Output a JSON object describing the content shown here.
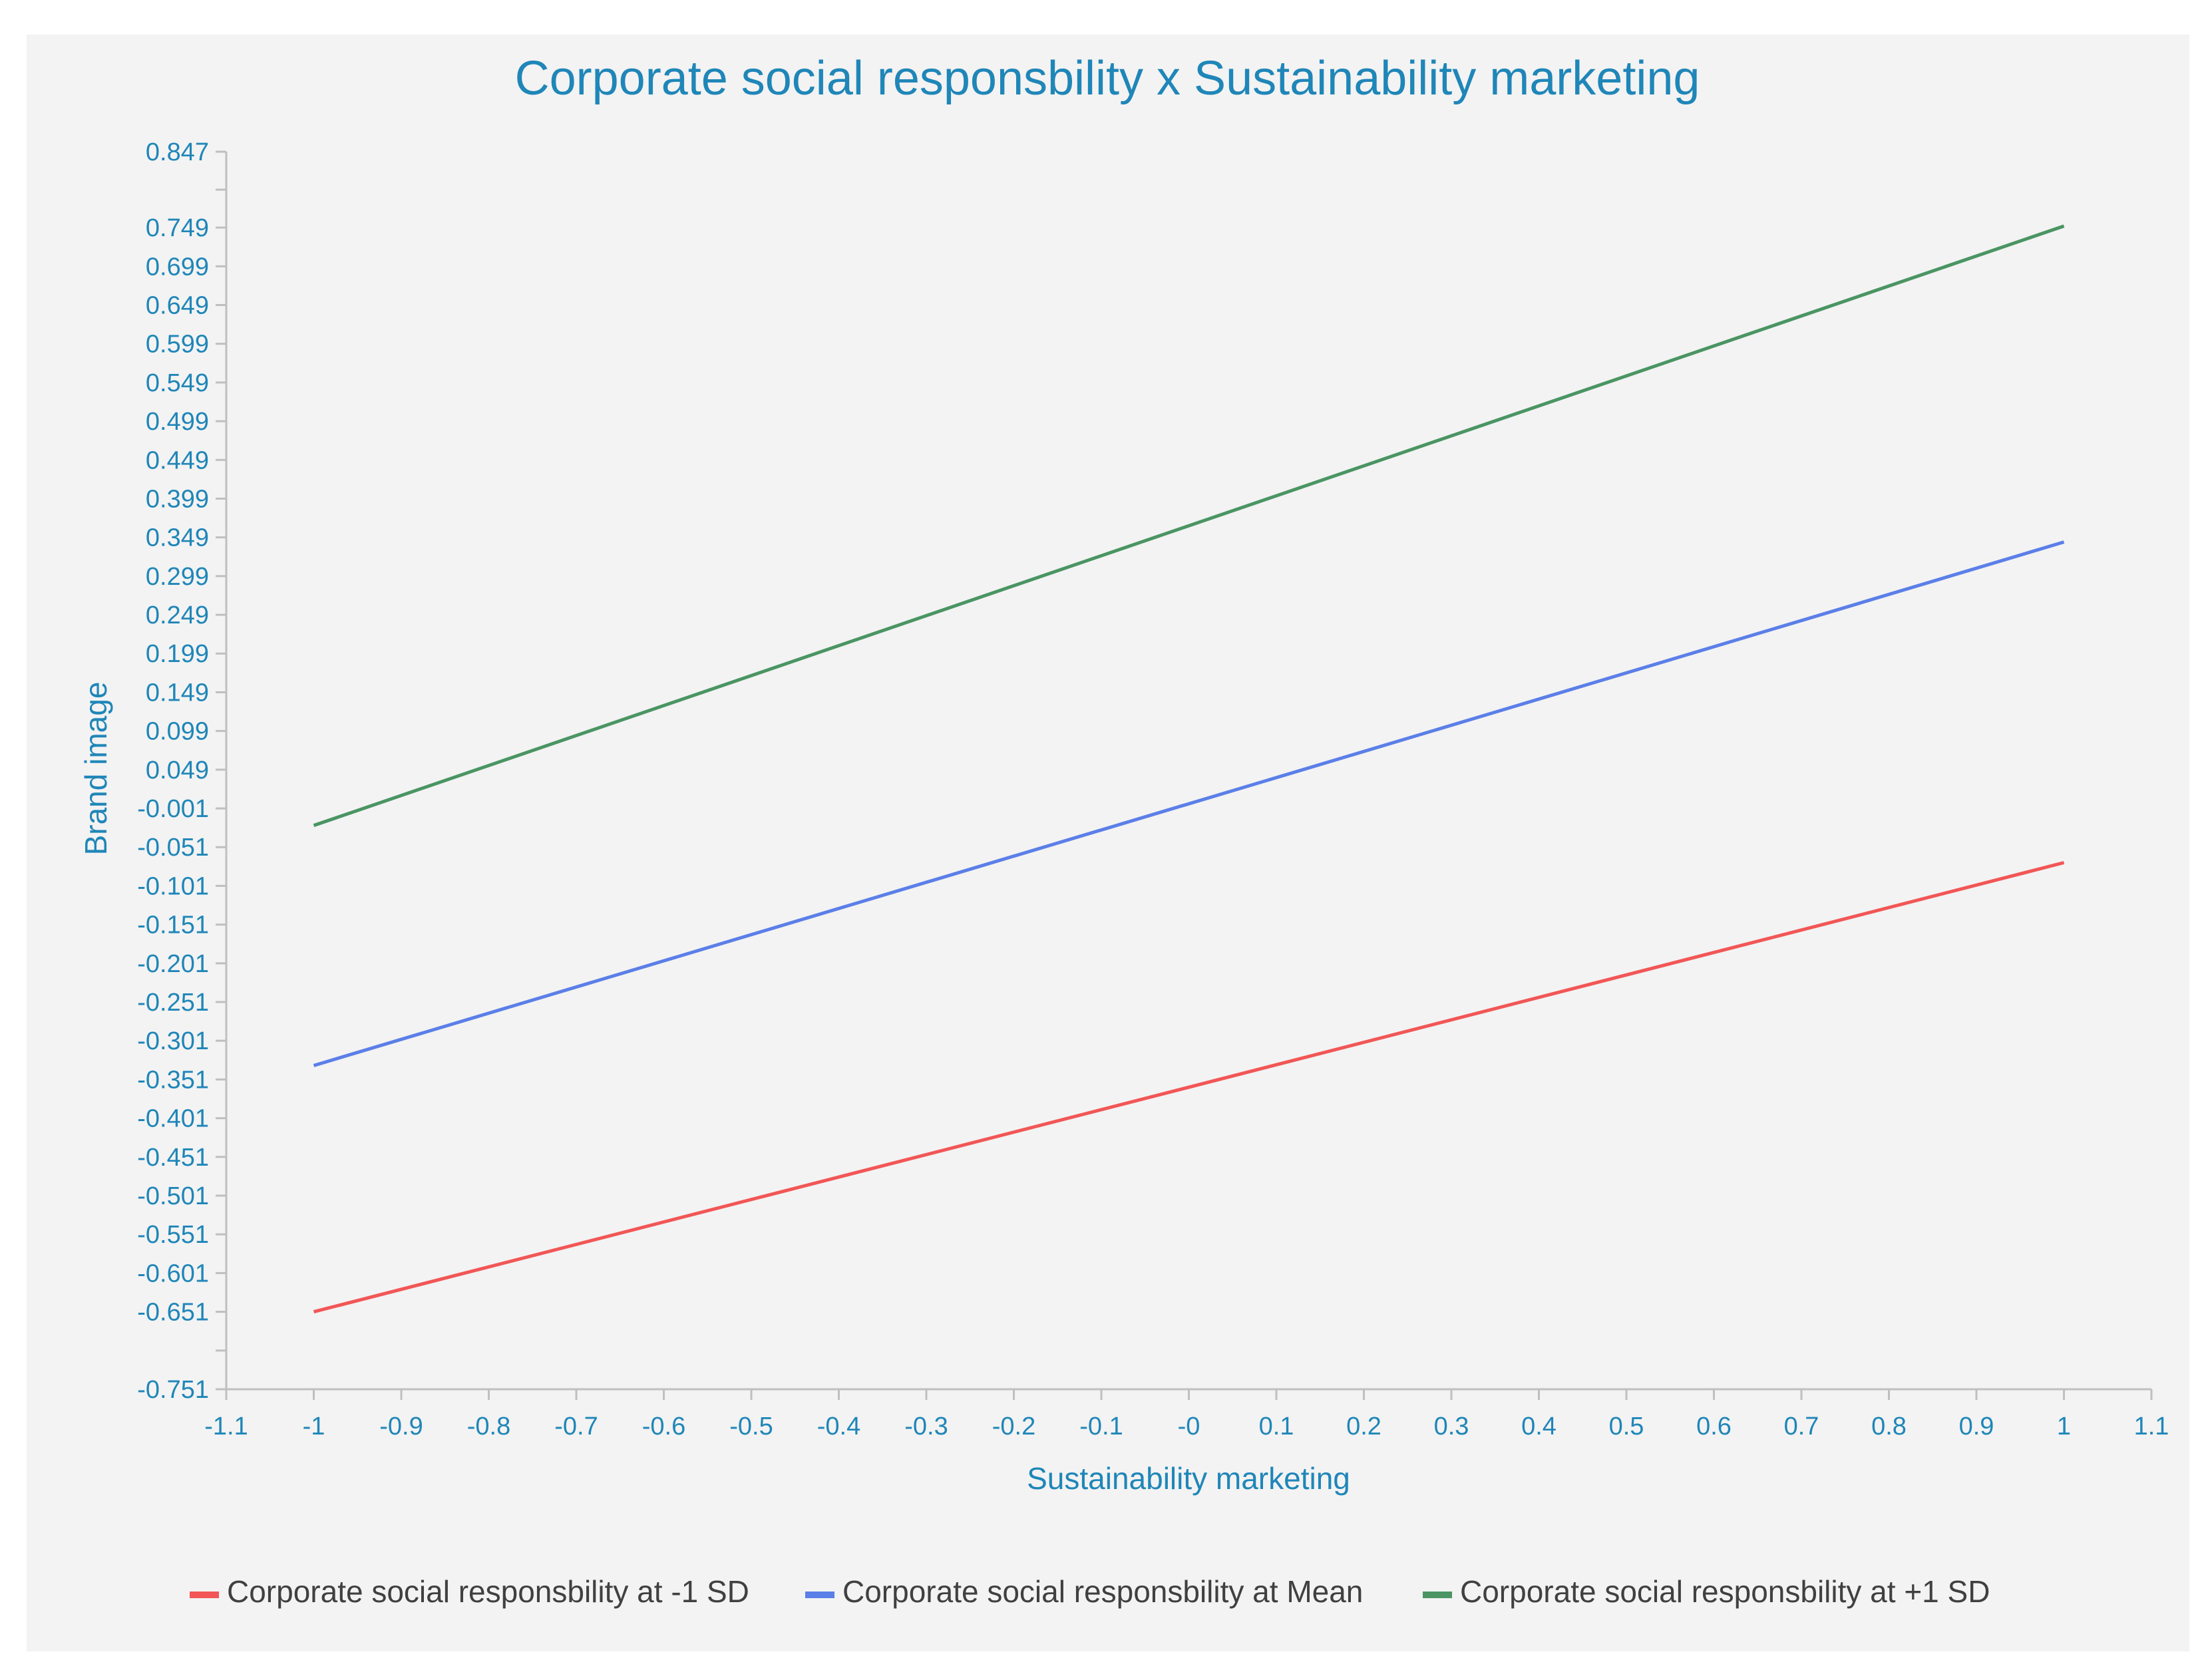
{
  "chart_data": {
    "type": "line",
    "title": "Corporate social responsbility x Sustainability marketing",
    "xlabel": "Sustainability marketing",
    "ylabel": "Brand image",
    "xlim": [
      -1.1,
      1.1
    ],
    "ylim": [
      -0.751,
      0.847
    ],
    "x_ticks": [
      "-1.1",
      "-1",
      "-0.9",
      "-0.8",
      "-0.7",
      "-0.6",
      "-0.5",
      "-0.4",
      "-0.3",
      "-0.2",
      "-0.1",
      "-0",
      "0.1",
      "0.2",
      "0.3",
      "0.4",
      "0.5",
      "0.6",
      "0.7",
      "0.8",
      "0.9",
      "1",
      "1.1"
    ],
    "x_tick_values": [
      -1.1,
      -1,
      -0.9,
      -0.8,
      -0.7,
      -0.6,
      -0.5,
      -0.4,
      -0.3,
      -0.2,
      -0.1,
      0,
      0.1,
      0.2,
      0.3,
      0.4,
      0.5,
      0.6,
      0.7,
      0.8,
      0.9,
      1,
      1.1
    ],
    "y_ticks": [
      "0.847",
      "0.749",
      "0.699",
      "0.649",
      "0.599",
      "0.549",
      "0.499",
      "0.449",
      "0.399",
      "0.349",
      "0.299",
      "0.249",
      "0.199",
      "0.149",
      "0.099",
      "0.049",
      "-0.001",
      "-0.051",
      "-0.101",
      "-0.151",
      "-0.201",
      "-0.251",
      "-0.301",
      "-0.351",
      "-0.401",
      "-0.451",
      "-0.501",
      "-0.551",
      "-0.601",
      "-0.651",
      "-0.751"
    ],
    "y_tick_values": [
      0.847,
      0.749,
      0.699,
      0.649,
      0.599,
      0.549,
      0.499,
      0.449,
      0.399,
      0.349,
      0.299,
      0.249,
      0.199,
      0.149,
      0.099,
      0.049,
      -0.001,
      -0.051,
      -0.101,
      -0.151,
      -0.201,
      -0.251,
      -0.301,
      -0.351,
      -0.401,
      -0.451,
      -0.501,
      -0.551,
      -0.601,
      -0.651,
      -0.751
    ],
    "y_minor_ticks": [
      0.798,
      -0.701
    ],
    "series": [
      {
        "name": "Corporate social responsbility at -1 SD",
        "color": "#f25656",
        "x": [
          -1,
          1
        ],
        "y": [
          -0.651,
          -0.071
        ]
      },
      {
        "name": "Corporate social responsbility at Mean",
        "color": "#5b7fe8",
        "x": [
          -1,
          1
        ],
        "y": [
          -0.333,
          0.343
        ]
      },
      {
        "name": "Corporate social responsbility at +1 SD",
        "color": "#4a9563",
        "x": [
          -1,
          1
        ],
        "y": [
          -0.023,
          0.751
        ]
      }
    ],
    "legend_position": "bottom-center",
    "colors": {
      "text": "#1f86b8",
      "axis": "#bfbfbf",
      "background": "#f3f3f3",
      "legend_text": "#404040"
    }
  }
}
